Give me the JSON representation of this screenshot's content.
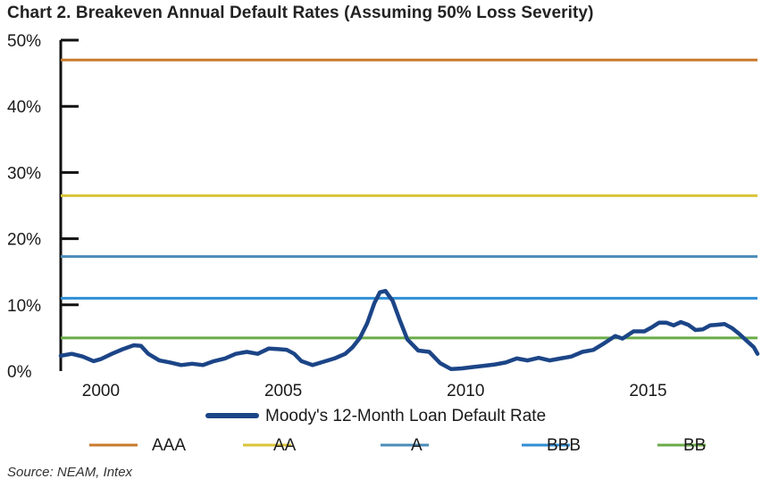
{
  "title": "Chart 2. Breakeven Annual Default Rates (Assuming 50% Loss Severity)",
  "source": "Source: NEAM, Intex",
  "chart_data": {
    "type": "line",
    "title": "Chart 2. Breakeven Annual Default Rates (Assuming 50% Loss Severity)",
    "xlabel": "",
    "ylabel": "",
    "xlim": [
      1998.9,
      2018.0
    ],
    "ylim": [
      0,
      50
    ],
    "grid": false,
    "legend_position": "bottom",
    "yticks": [
      0,
      10,
      20,
      30,
      40,
      50
    ],
    "ytick_labels": [
      "0%",
      "10%",
      "20%",
      "30%",
      "40%",
      "50%"
    ],
    "xticks": [
      2000,
      2005,
      2010,
      2015
    ],
    "xtick_labels": [
      "2000",
      "2005",
      "2010",
      "2015"
    ],
    "series": [
      {
        "name": "Moody's 12-Month Loan Default Rate",
        "color": "#1c4587",
        "x": [
          1998.9,
          1999.2,
          1999.5,
          1999.8,
          2000.0,
          2000.3,
          2000.6,
          2000.9,
          2001.1,
          2001.3,
          2001.6,
          2001.9,
          2002.2,
          2002.5,
          2002.8,
          2003.1,
          2003.4,
          2003.7,
          2004.0,
          2004.3,
          2004.6,
          2004.9,
          2005.1,
          2005.3,
          2005.5,
          2005.8,
          2006.1,
          2006.4,
          2006.7,
          2006.9,
          2007.1,
          2007.3,
          2007.5,
          2007.65,
          2007.8,
          2008.0,
          2008.2,
          2008.4,
          2008.7,
          2009.0,
          2009.3,
          2009.6,
          2009.9,
          2010.2,
          2010.5,
          2010.8,
          2011.1,
          2011.4,
          2011.7,
          2012.0,
          2012.3,
          2012.6,
          2012.9,
          2013.2,
          2013.5,
          2013.8,
          2014.1,
          2014.3,
          2014.6,
          2014.9,
          2015.1,
          2015.3,
          2015.5,
          2015.7,
          2015.9,
          2016.1,
          2016.3,
          2016.5,
          2016.7,
          2016.9,
          2017.1,
          2017.3,
          2017.5,
          2017.7,
          2017.9,
          2018.0
        ],
        "y": [
          2.3,
          2.6,
          2.2,
          1.5,
          1.8,
          2.6,
          3.3,
          3.9,
          3.8,
          2.6,
          1.6,
          1.3,
          0.9,
          1.1,
          0.9,
          1.5,
          1.9,
          2.6,
          2.9,
          2.6,
          3.4,
          3.3,
          3.2,
          2.6,
          1.5,
          0.9,
          1.4,
          1.9,
          2.6,
          3.6,
          5.0,
          7.2,
          10.3,
          11.9,
          12.1,
          10.6,
          7.6,
          4.8,
          3.1,
          2.9,
          1.2,
          0.3,
          0.4,
          0.6,
          0.8,
          1.0,
          1.3,
          1.9,
          1.6,
          2.0,
          1.6,
          1.9,
          2.2,
          2.9,
          3.2,
          4.2,
          5.3,
          4.9,
          6.0,
          6.0,
          6.6,
          7.3,
          7.3,
          6.9,
          7.4,
          7.0,
          6.2,
          6.3,
          6.9,
          7.0,
          7.1,
          6.5,
          5.6,
          4.6,
          3.6,
          2.6
        ]
      },
      {
        "name": "AAA",
        "color": "#c97a2c",
        "x": [
          1998.9,
          2018.0
        ],
        "y": [
          47,
          47
        ]
      },
      {
        "name": "AA",
        "color": "#d9c43a",
        "x": [
          1998.9,
          2018.0
        ],
        "y": [
          26.5,
          26.5
        ]
      },
      {
        "name": "A",
        "color": "#4a8cb8",
        "x": [
          1998.9,
          2018.0
        ],
        "y": [
          17.3,
          17.3
        ]
      },
      {
        "name": "BBB",
        "color": "#2f8ed4",
        "x": [
          1998.9,
          2018.0
        ],
        "y": [
          11,
          11
        ]
      },
      {
        "name": "BB",
        "color": "#6aab48",
        "x": [
          1998.9,
          2018.0
        ],
        "y": [
          5,
          5
        ]
      }
    ]
  }
}
